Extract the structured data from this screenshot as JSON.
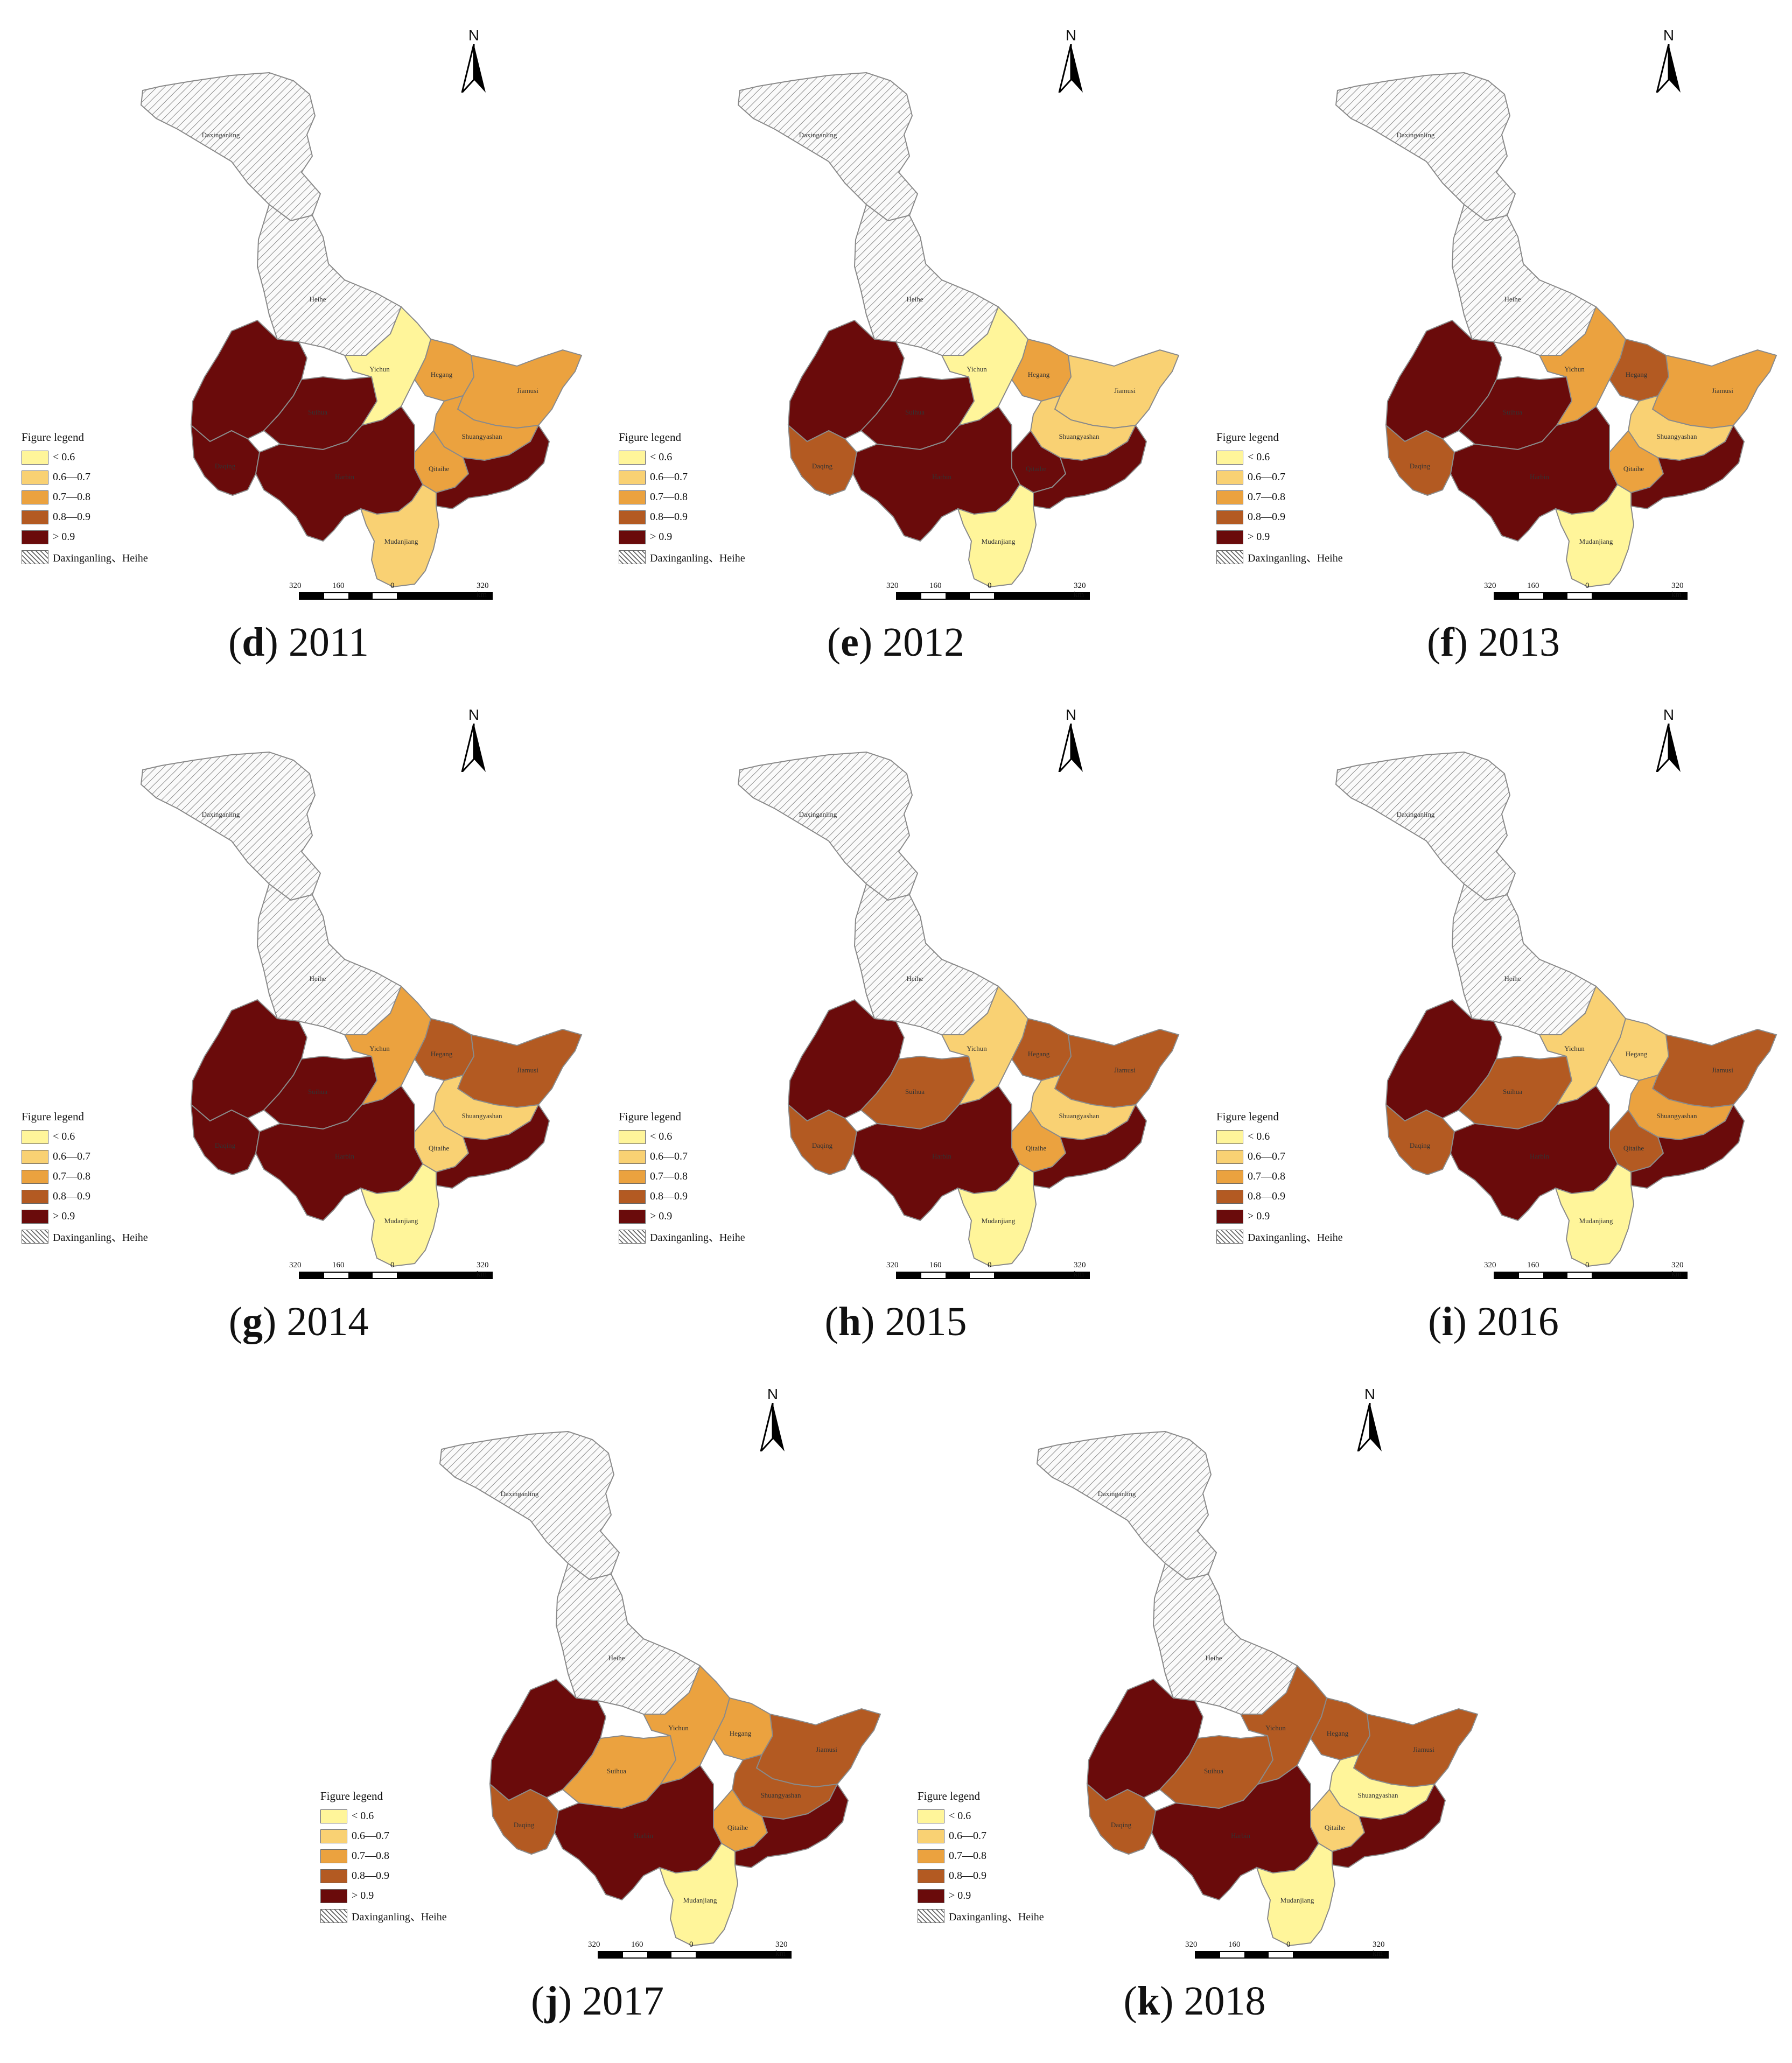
{
  "legend": {
    "title": "Figure legend",
    "classes": [
      {
        "label": "< 0.6",
        "color": "#fff59a"
      },
      {
        "label": "0.6—0.7",
        "color": "#f9d173"
      },
      {
        "label": "0.7—0.8",
        "color": "#eba23f"
      },
      {
        "label": "0.8—0.9",
        "color": "#b35a22"
      },
      {
        "label": "> 0.9",
        "color": "#6a0b0b"
      }
    ],
    "nodata": {
      "label": "Daxinganling、Heihe"
    }
  },
  "north_label": "N",
  "scale": {
    "labels": [
      "320",
      "160",
      "0",
      "320 km"
    ]
  },
  "regions": [
    {
      "key": "daxinganling",
      "label": "Daxinganling"
    },
    {
      "key": "heihe",
      "label": "Heihe"
    },
    {
      "key": "qiqihar",
      "label": ""
    },
    {
      "key": "daqing",
      "label": "Daqing"
    },
    {
      "key": "suihua",
      "label": "Suihua"
    },
    {
      "key": "yichun",
      "label": "Yichun"
    },
    {
      "key": "hegang",
      "label": "Hegang"
    },
    {
      "key": "jiamusi",
      "label": "Jiamusi"
    },
    {
      "key": "shuangyashan",
      "label": "Shuangyashan"
    },
    {
      "key": "qitaihe",
      "label": "Qitaihe"
    },
    {
      "key": "harbin",
      "label": "Harbin"
    },
    {
      "key": "jixi",
      "label": ""
    },
    {
      "key": "mudanjiang",
      "label": "Mudanjiang"
    }
  ],
  "panels": [
    {
      "letter": "d",
      "year": "2011",
      "classes": {
        "qiqihar": 4,
        "daqing": 4,
        "suihua": 4,
        "yichun": 0,
        "hegang": 2,
        "jiamusi": 2,
        "shuangyashan": 2,
        "qitaihe": 2,
        "harbin": 4,
        "jixi": 4,
        "mudanjiang": 1
      }
    },
    {
      "letter": "e",
      "year": "2012",
      "classes": {
        "qiqihar": 4,
        "daqing": 3,
        "suihua": 4,
        "yichun": 0,
        "hegang": 2,
        "jiamusi": 1,
        "shuangyashan": 1,
        "qitaihe": 4,
        "harbin": 4,
        "jixi": 4,
        "mudanjiang": 0
      }
    },
    {
      "letter": "f",
      "year": "2013",
      "classes": {
        "qiqihar": 4,
        "daqing": 3,
        "suihua": 4,
        "yichun": 2,
        "hegang": 3,
        "jiamusi": 2,
        "shuangyashan": 1,
        "qitaihe": 2,
        "harbin": 4,
        "jixi": 4,
        "mudanjiang": 0
      }
    },
    {
      "letter": "g",
      "year": "2014",
      "classes": {
        "qiqihar": 4,
        "daqing": 4,
        "suihua": 4,
        "yichun": 2,
        "hegang": 3,
        "jiamusi": 3,
        "shuangyashan": 1,
        "qitaihe": 1,
        "harbin": 4,
        "jixi": 4,
        "mudanjiang": 0
      }
    },
    {
      "letter": "h",
      "year": "2015",
      "classes": {
        "qiqihar": 4,
        "daqing": 3,
        "suihua": 3,
        "yichun": 1,
        "hegang": 3,
        "jiamusi": 3,
        "shuangyashan": 1,
        "qitaihe": 2,
        "harbin": 4,
        "jixi": 4,
        "mudanjiang": 0
      }
    },
    {
      "letter": "i",
      "year": "2016",
      "classes": {
        "qiqihar": 4,
        "daqing": 3,
        "suihua": 3,
        "yichun": 1,
        "hegang": 1,
        "jiamusi": 3,
        "shuangyashan": 2,
        "qitaihe": 3,
        "harbin": 4,
        "jixi": 4,
        "mudanjiang": 0
      }
    },
    {
      "letter": "j",
      "year": "2017",
      "classes": {
        "qiqihar": 4,
        "daqing": 3,
        "suihua": 2,
        "yichun": 2,
        "hegang": 2,
        "jiamusi": 3,
        "shuangyashan": 3,
        "qitaihe": 2,
        "harbin": 4,
        "jixi": 4,
        "mudanjiang": 0
      }
    },
    {
      "letter": "k",
      "year": "2018",
      "classes": {
        "qiqihar": 4,
        "daqing": 3,
        "suihua": 3,
        "yichun": 3,
        "hegang": 3,
        "jiamusi": 3,
        "shuangyashan": 0,
        "qitaihe": 1,
        "harbin": 4,
        "jixi": 4,
        "mudanjiang": 0
      }
    }
  ]
}
